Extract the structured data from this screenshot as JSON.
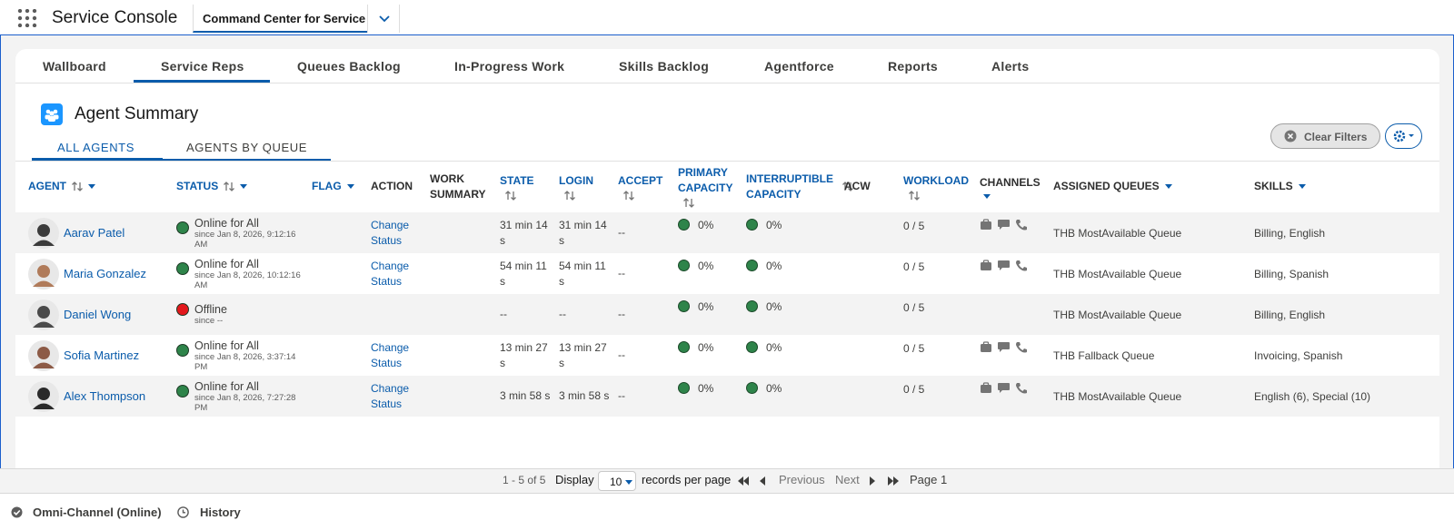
{
  "app": {
    "name": "Service Console",
    "tab": "Command Center for Service"
  },
  "tabs": [
    "Wallboard",
    "Service Reps",
    "Queues Backlog",
    "In-Progress Work",
    "Skills Backlog",
    "Agentforce",
    "Reports",
    "Alerts"
  ],
  "summary": {
    "title": "Agent Summary",
    "subtabs": [
      "ALL AGENTS",
      "AGENTS BY QUEUE"
    ],
    "clear_filters": "Clear Filters"
  },
  "table": {
    "columns": [
      "AGENT",
      "STATUS",
      "FLAG",
      "ACTION",
      "WORK SUMMARY",
      "STATE",
      "LOGIN",
      "ACCEPT",
      "PRIMARY CAPACITY",
      "INTERRUPTIBLE CAPACITY",
      "ACW",
      "WORKLOAD",
      "CHANNELS",
      "ASSIGNED QUEUES",
      "SKILLS"
    ],
    "rows": [
      {
        "agent": "Aarav Patel",
        "status": "Online for All",
        "since": "since Jan 8, 2026, 9:12:16 AM",
        "status_color": "#2e844a",
        "action": "Change Status",
        "state": "31 min 14 s",
        "login": "31 min 14 s",
        "accept": "--",
        "primary_capacity": "0%",
        "interruptible_capacity": "0%",
        "workload": "0 / 5",
        "assigned_queues": "THB MostAvailable Queue",
        "skills": "Billing, English"
      },
      {
        "agent": "Maria Gonzalez",
        "status": "Online for All",
        "since": "since Jan 8, 2026, 10:12:16 AM",
        "status_color": "#2e844a",
        "action": "Change Status",
        "state": "54 min 11 s",
        "login": "54 min 11 s",
        "accept": "--",
        "primary_capacity": "0%",
        "interruptible_capacity": "0%",
        "workload": "0 / 5",
        "assigned_queues": "THB MostAvailable Queue",
        "skills": "Billing, Spanish"
      },
      {
        "agent": "Daniel Wong",
        "status": "Offline",
        "since": "since --",
        "status_color": "#e3181c",
        "state": "--",
        "login": "--",
        "accept": "--",
        "primary_capacity": "0%",
        "interruptible_capacity": "0%",
        "workload": "0 / 5",
        "assigned_queues": "THB MostAvailable Queue",
        "skills": "Billing, English"
      },
      {
        "agent": "Sofia Martinez",
        "status": "Online for All",
        "since": "since Jan 8, 2026, 3:37:14 PM",
        "status_color": "#2e844a",
        "action": "Change Status",
        "state": "13 min 27 s",
        "login": "13 min 27 s",
        "accept": "--",
        "primary_capacity": "0%",
        "interruptible_capacity": "0%",
        "workload": "0 / 5",
        "assigned_queues": "THB Fallback Queue",
        "skills": "Invoicing, Spanish"
      },
      {
        "agent": "Alex Thompson",
        "status": "Online for All",
        "since": "since Jan 8, 2026, 7:27:28 PM",
        "status_color": "#2e844a",
        "action": "Change Status",
        "state": "3 min 58 s",
        "login": "3 min 58 s",
        "accept": "--",
        "primary_capacity": "0%",
        "interruptible_capacity": "0%",
        "workload": "0 / 5",
        "assigned_queues": "THB MostAvailable Queue",
        "skills": "English (6), Special (10)"
      }
    ]
  },
  "pager": {
    "range": "1 - 5 of 5",
    "display": "Display",
    "page_size": "10",
    "per_page": "records per page",
    "previous": "Previous",
    "next": "Next",
    "page": "Page 1"
  },
  "footer": {
    "omni": "Omni-Channel (Online)",
    "history": "History"
  }
}
